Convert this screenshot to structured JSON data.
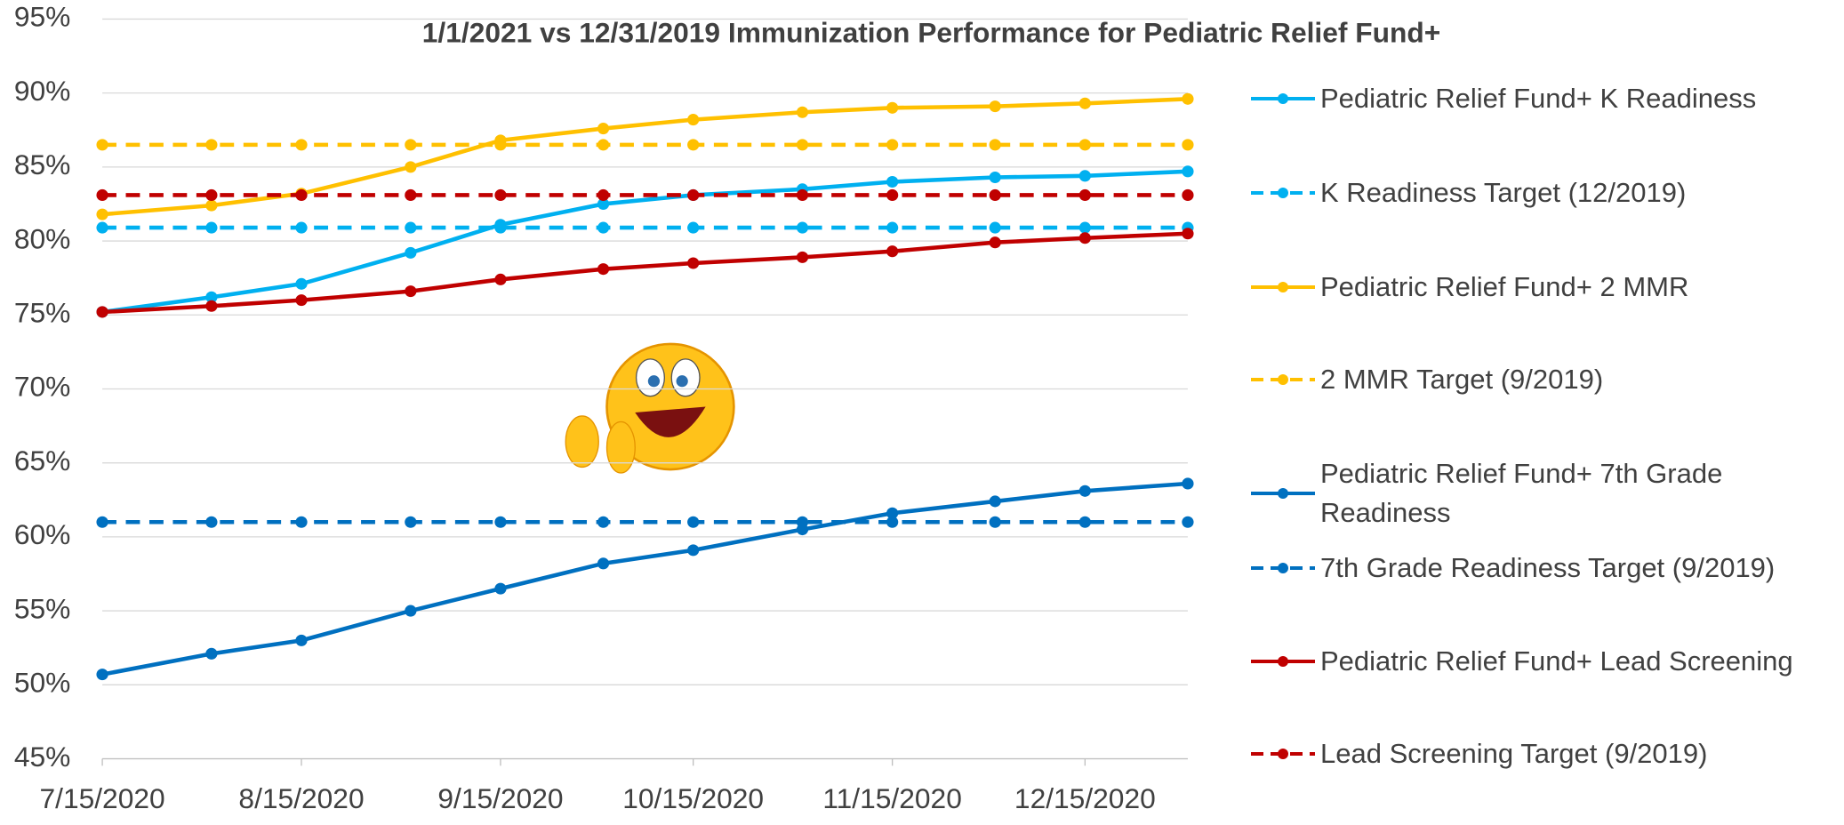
{
  "chart_data": {
    "type": "line",
    "title": "1/1/2021 vs 12/31/2019 Immunization Performance for Pediatric Relief Fund+",
    "x": [
      "7/15/2020",
      "8/1/2020",
      "8/15/2020",
      "9/1/2020",
      "9/15/2020",
      "10/1/2020",
      "10/15/2020",
      "11/1/2020",
      "11/15/2020",
      "12/1/2020",
      "12/15/2020",
      "12/31/2020"
    ],
    "xlim": [
      "7/15/2020",
      "12/31/2020"
    ],
    "xticks": [
      "7/15/2020",
      "8/15/2020",
      "9/15/2020",
      "10/15/2020",
      "11/15/2020",
      "12/15/2020"
    ],
    "ylim": [
      45,
      95
    ],
    "yticks": [
      {
        "value": 45,
        "label": "45%"
      },
      {
        "value": 50,
        "label": "50%"
      },
      {
        "value": 55,
        "label": "55%"
      },
      {
        "value": 60,
        "label": "60%"
      },
      {
        "value": 65,
        "label": "65%"
      },
      {
        "value": 70,
        "label": "70%"
      },
      {
        "value": 75,
        "label": "75%"
      },
      {
        "value": 80,
        "label": "80%"
      },
      {
        "value": 85,
        "label": "85%"
      },
      {
        "value": 90,
        "label": "90%"
      },
      {
        "value": 95,
        "label": "95%"
      }
    ],
    "grid": true,
    "legend": "right",
    "series": [
      {
        "name": "Pediatric Relief Fund+ K Readiness",
        "color": "#00b0f0",
        "dashed": false,
        "values": [
          75.2,
          76.2,
          77.1,
          79.2,
          81.1,
          82.5,
          83.1,
          83.5,
          84.0,
          84.3,
          84.4,
          84.7
        ]
      },
      {
        "name": "K Readiness Target (12/2019)",
        "color": "#00b0f0",
        "dashed": true,
        "values": [
          80.9,
          80.9,
          80.9,
          80.9,
          80.9,
          80.9,
          80.9,
          80.9,
          80.9,
          80.9,
          80.9,
          80.9
        ]
      },
      {
        "name": "Pediatric Relief Fund+ 2 MMR",
        "color": "#ffc000",
        "dashed": false,
        "values": [
          81.8,
          82.4,
          83.2,
          85.0,
          86.8,
          87.6,
          88.2,
          88.7,
          89.0,
          89.1,
          89.3,
          89.6
        ]
      },
      {
        "name": "2 MMR Target (9/2019)",
        "color": "#ffc000",
        "dashed": true,
        "values": [
          86.5,
          86.5,
          86.5,
          86.5,
          86.5,
          86.5,
          86.5,
          86.5,
          86.5,
          86.5,
          86.5,
          86.5
        ]
      },
      {
        "name": "Pediatric Relief Fund+ 7th Grade Readiness",
        "color": "#0070c0",
        "dashed": false,
        "values": [
          50.7,
          52.1,
          53.0,
          55.0,
          56.5,
          58.2,
          59.1,
          60.5,
          61.6,
          62.4,
          63.1,
          63.6
        ]
      },
      {
        "name": "7th Grade Readiness Target (9/2019)",
        "color": "#0070c0",
        "dashed": true,
        "values": [
          61.0,
          61.0,
          61.0,
          61.0,
          61.0,
          61.0,
          61.0,
          61.0,
          61.0,
          61.0,
          61.0,
          61.0
        ]
      },
      {
        "name": "Pediatric Relief Fund+ Lead Screening",
        "color": "#c00000",
        "dashed": false,
        "values": [
          75.2,
          75.6,
          76.0,
          76.6,
          77.4,
          78.1,
          78.5,
          78.9,
          79.3,
          79.9,
          80.2,
          80.5
        ]
      },
      {
        "name": "Lead Screening Target (9/2019)",
        "color": "#c00000",
        "dashed": true,
        "values": [
          83.1,
          83.1,
          83.1,
          83.1,
          83.1,
          83.1,
          83.1,
          83.1,
          83.1,
          83.1,
          83.1,
          83.1
        ]
      }
    ]
  }
}
